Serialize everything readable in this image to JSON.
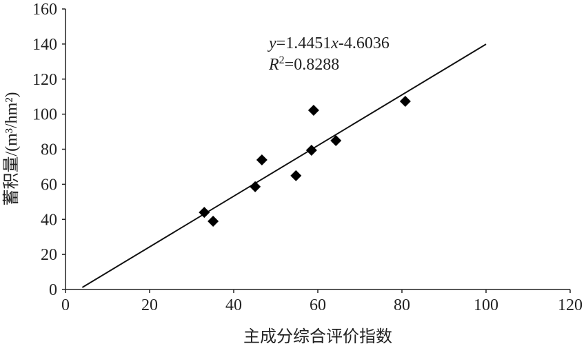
{
  "chart_data": {
    "type": "scatter",
    "x_label": "主成分综合评价指数",
    "y_label": "蓄积量/(m³/hm²)",
    "x": [
      33,
      35.1,
      45.1,
      46.7,
      54.8,
      58.5,
      59,
      64.3,
      80.8
    ],
    "y": [
      44,
      38.9,
      58.6,
      73.9,
      64.9,
      79.4,
      102.2,
      84.9,
      107.3
    ],
    "color": "#000000",
    "trendline": {
      "x": [
        4,
        100
      ],
      "y": [
        1.18,
        139.9
      ]
    },
    "equation": [
      "y",
      "=1.4451",
      "x",
      "-4.6036"
    ],
    "r_squared": [
      "R",
      "2",
      "=0.8288"
    ],
    "xlim": [
      0,
      120
    ],
    "xticks": [
      0,
      20,
      40,
      60,
      80,
      100,
      120
    ],
    "ylim": [
      0,
      160
    ],
    "yticks": [
      0,
      20,
      40,
      60,
      80,
      100,
      120,
      140,
      160
    ],
    "grid": false
  }
}
